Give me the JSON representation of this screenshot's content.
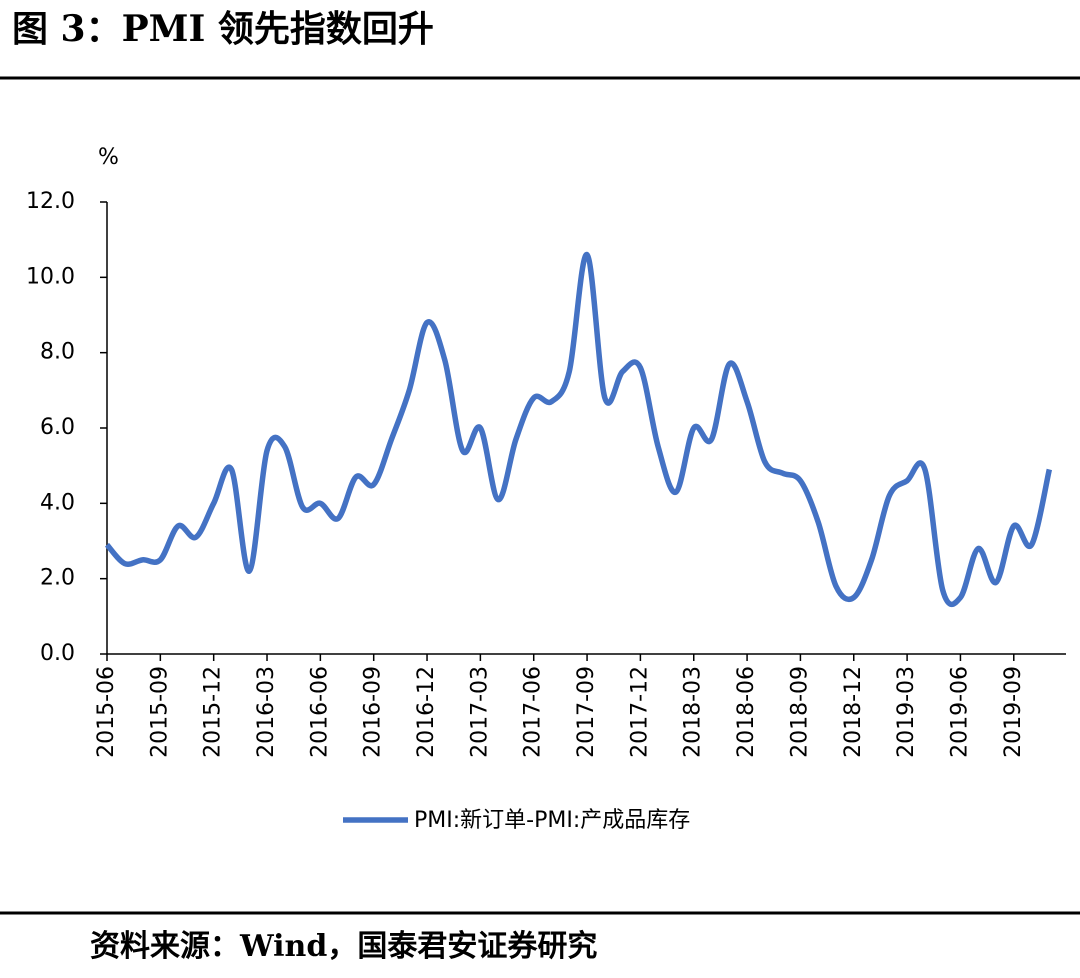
{
  "chart_data": {
    "type": "line",
    "title": "图 3：PMI 领先指数回升",
    "y_unit": "%",
    "source": "资料来源：Wind，国泰君安证券研究",
    "categories": [
      "2015-06",
      null,
      null,
      "2015-09",
      null,
      null,
      "2015-12",
      null,
      null,
      "2016-03",
      null,
      null,
      "2016-06",
      null,
      null,
      "2016-09",
      null,
      null,
      "2016-12",
      null,
      null,
      "2017-03",
      null,
      null,
      "2017-06",
      null,
      null,
      "2017-09",
      null,
      null,
      "2017-12",
      null,
      null,
      "2018-03",
      null,
      null,
      "2018-06",
      null,
      null,
      "2018-09",
      null,
      null,
      "2018-12",
      null,
      null,
      "2019-03",
      null,
      null,
      "2019-06",
      null,
      null,
      "2019-09",
      null,
      null
    ],
    "series": [
      {
        "name": "PMI:新订单-PMI:产成品库存",
        "color": "#4472c4",
        "values": [
          2.9,
          2.4,
          2.5,
          2.5,
          3.4,
          3.1,
          4.0,
          4.9,
          2.2,
          5.4,
          5.5,
          3.9,
          4.0,
          3.6,
          4.7,
          4.5,
          5.7,
          7.0,
          8.8,
          7.8,
          5.4,
          6.0,
          4.1,
          5.7,
          6.8,
          6.7,
          7.5,
          10.6,
          6.8,
          7.5,
          7.6,
          5.5,
          4.3,
          6.0,
          5.7,
          7.7,
          6.7,
          5.1,
          4.8,
          4.6,
          3.5,
          1.8,
          1.5,
          2.5,
          4.2,
          4.6,
          4.9,
          1.7,
          1.5,
          2.8,
          1.9,
          3.4,
          2.9,
          4.9
        ]
      }
    ],
    "ylim": [
      0,
      12
    ],
    "yticks": [
      {
        "value": 0,
        "label": "0.0"
      },
      {
        "value": 2,
        "label": "2.0"
      },
      {
        "value": 4,
        "label": "4.0"
      },
      {
        "value": 6,
        "label": "6.0"
      },
      {
        "value": 8,
        "label": "8.0"
      },
      {
        "value": 10,
        "label": "10.0"
      },
      {
        "value": 12,
        "label": "12.0"
      }
    ],
    "legend": "bottom"
  }
}
